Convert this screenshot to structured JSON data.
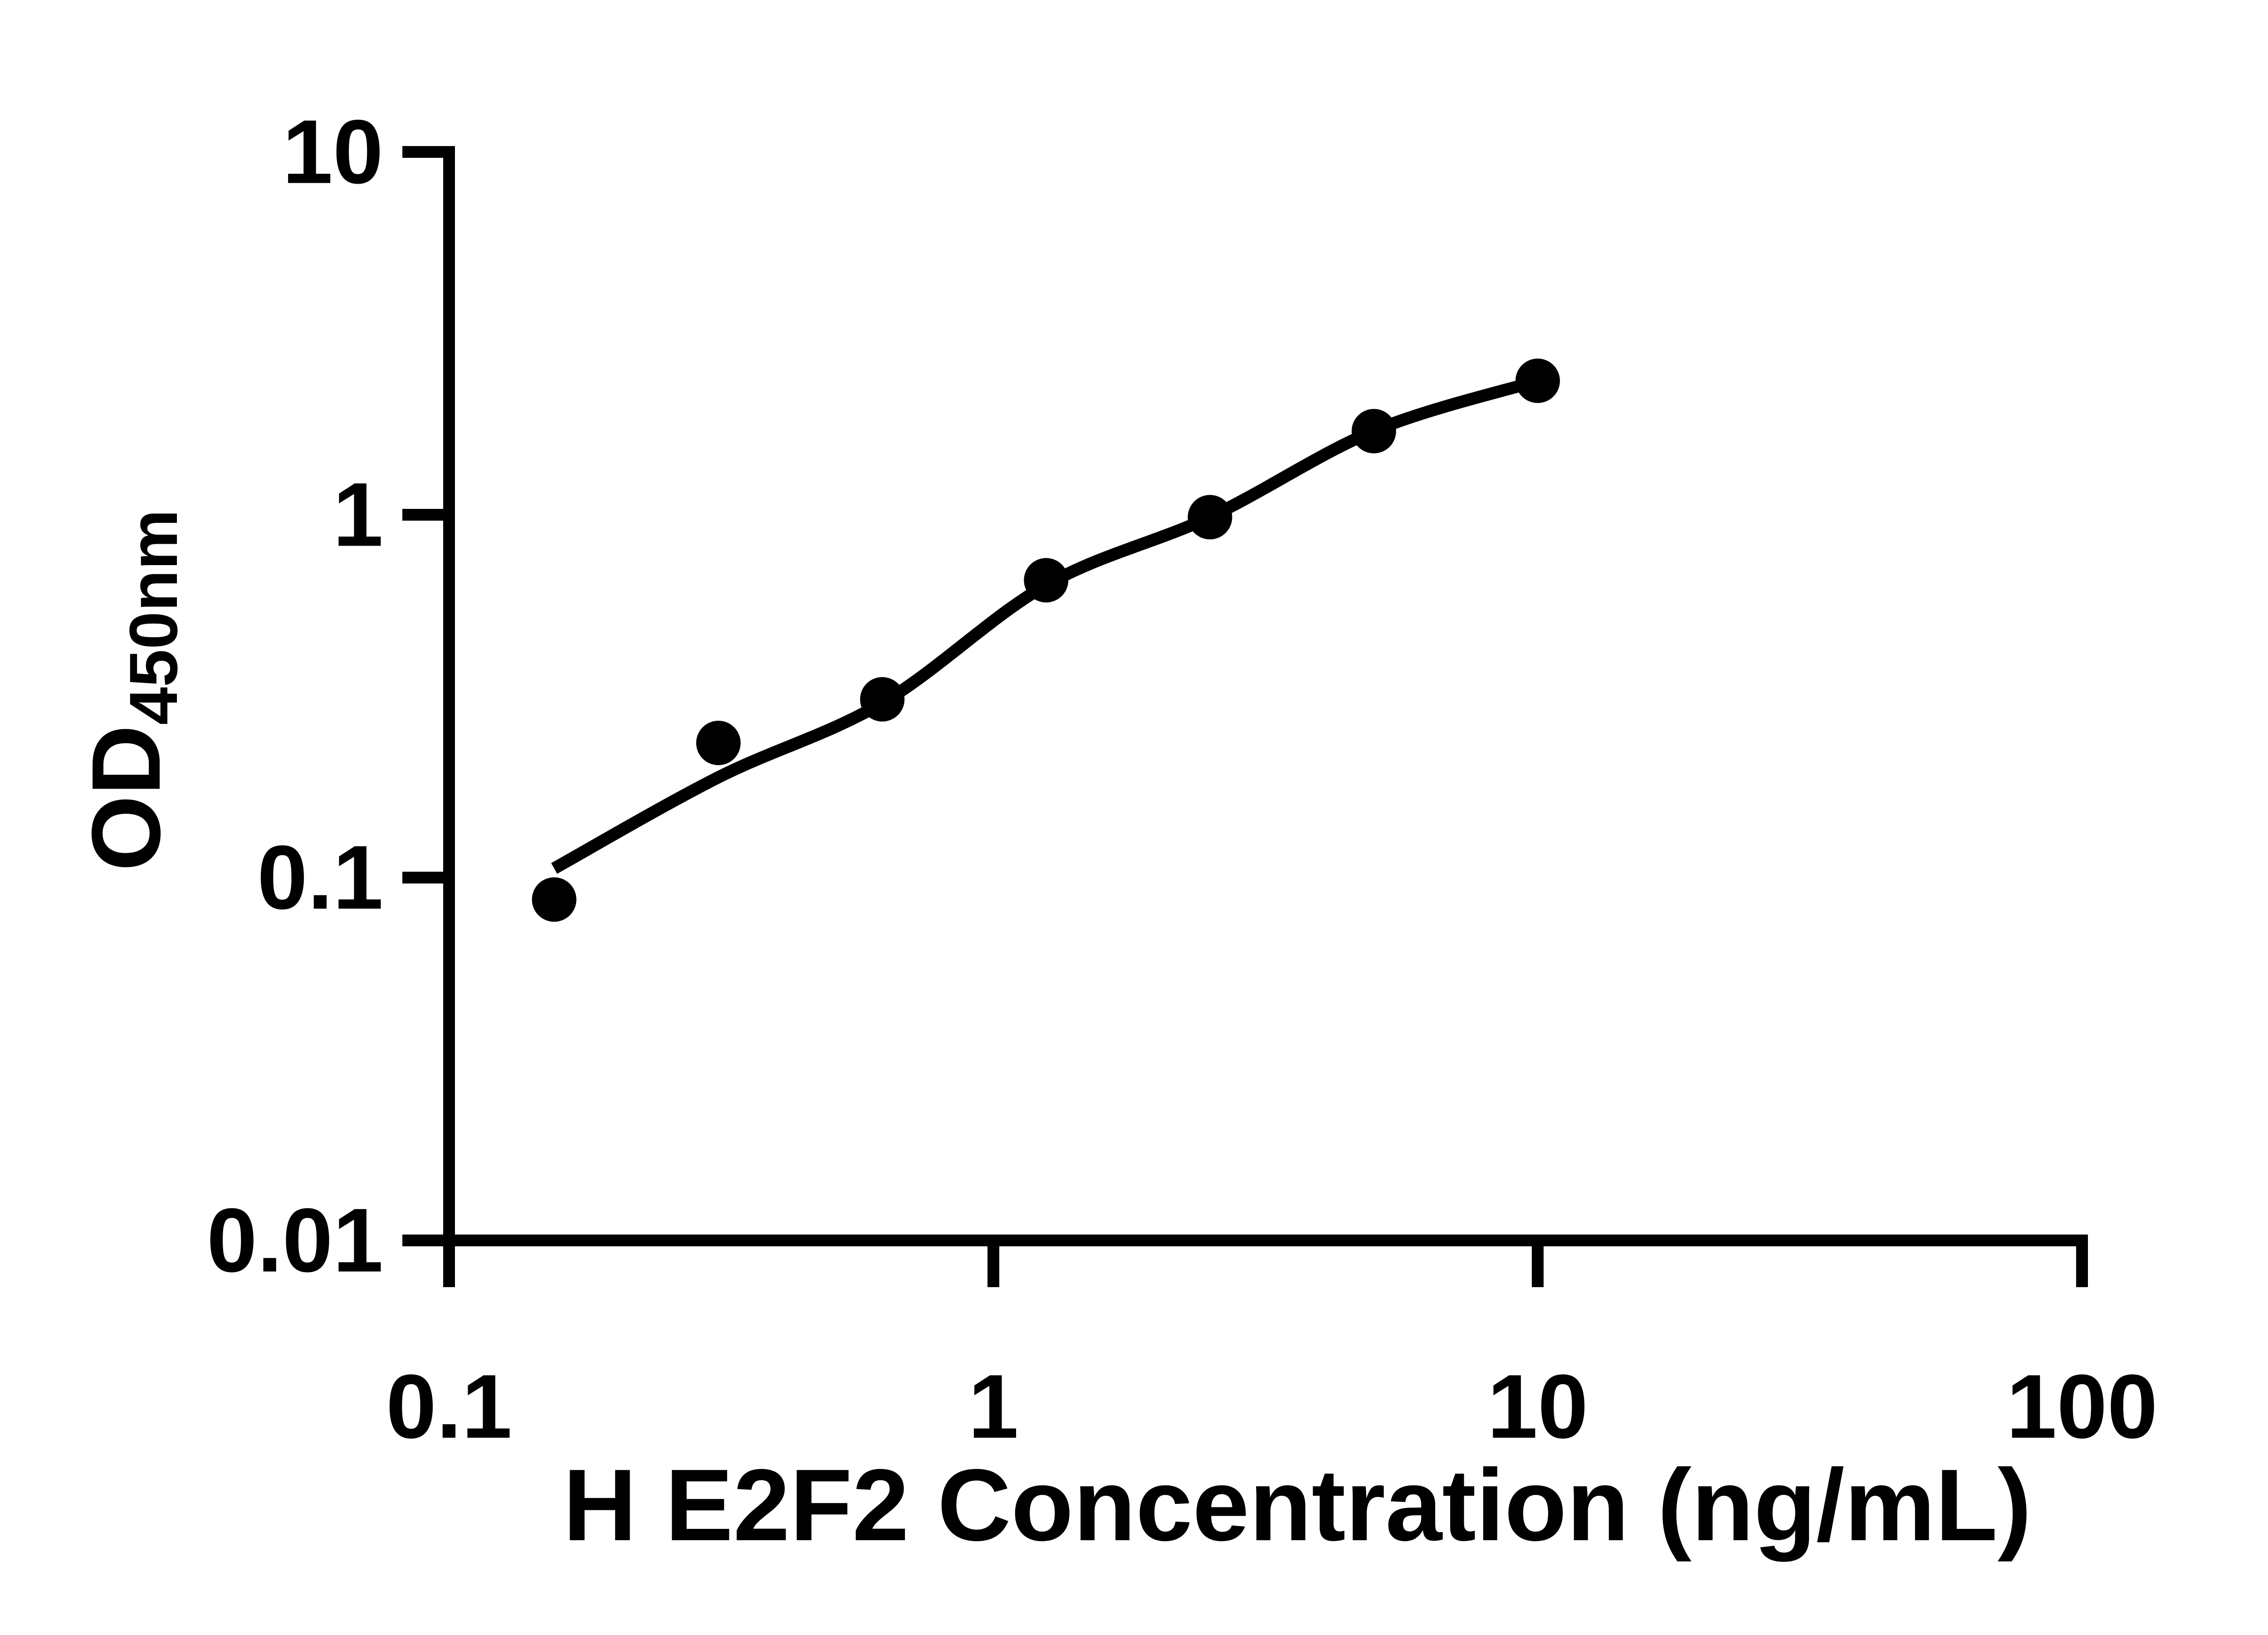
{
  "figure": {
    "kind": "ELISA standard curve",
    "background_color": "#ffffff",
    "ink_color": "#000000"
  },
  "chart_data": {
    "type": "scatter",
    "title": "",
    "xlabel": "H E2F2 Concentration (ng/mL)",
    "ylabel_main": "OD",
    "ylabel_sub": "450nm",
    "x_scale": "log10",
    "y_scale": "log10",
    "xlim": [
      0.1,
      100
    ],
    "ylim": [
      0.01,
      10
    ],
    "grid": false,
    "legend": null,
    "x_ticks": [
      {
        "v": 0.1,
        "label": "0.1"
      },
      {
        "v": 1,
        "label": "1"
      },
      {
        "v": 10,
        "label": "10"
      },
      {
        "v": 100,
        "label": "100"
      }
    ],
    "y_ticks": [
      {
        "v": 0.01,
        "label": "0.01"
      },
      {
        "v": 0.1,
        "label": "0.1"
      },
      {
        "v": 1,
        "label": "1"
      },
      {
        "v": 10,
        "label": "10"
      }
    ],
    "marker": {
      "shape": "filled-circle",
      "color": "#000000"
    },
    "points": [
      {
        "x": 0.156,
        "y": 0.087
      },
      {
        "x": 0.3125,
        "y": 0.235
      },
      {
        "x": 0.625,
        "y": 0.31
      },
      {
        "x": 1.25,
        "y": 0.66
      },
      {
        "x": 2.5,
        "y": 0.985
      },
      {
        "x": 5,
        "y": 1.7
      },
      {
        "x": 10,
        "y": 2.34
      }
    ],
    "fit_curve": [
      {
        "x": 0.156,
        "y": 0.106
      },
      {
        "x": 0.3125,
        "y": 0.189
      },
      {
        "x": 0.625,
        "y": 0.303
      },
      {
        "x": 1.25,
        "y": 0.64
      },
      {
        "x": 2.5,
        "y": 0.986
      },
      {
        "x": 5,
        "y": 1.703
      },
      {
        "x": 10,
        "y": 2.338
      }
    ]
  }
}
